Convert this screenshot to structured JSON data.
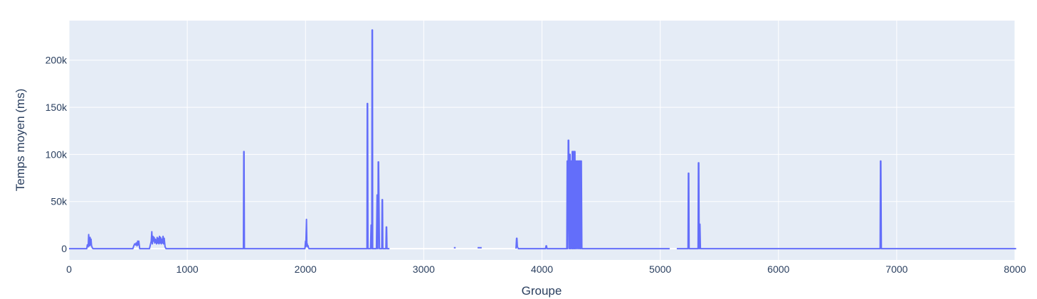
{
  "chart_data": {
    "type": "line",
    "xlabel": "Groupe",
    "ylabel": "Temps moyen (ms)",
    "xlim": [
      0,
      8000
    ],
    "ylim": [
      -12000,
      242000
    ],
    "grid": true,
    "legend": "none",
    "colors": {
      "plot_bg": "#e5ecf6",
      "grid": "#ffffff",
      "line": "#636efa",
      "text": "#2a3f5f"
    },
    "x_ticks": [
      {
        "value": 0,
        "label": "0"
      },
      {
        "value": 1000,
        "label": "1000"
      },
      {
        "value": 2000,
        "label": "2000"
      },
      {
        "value": 3000,
        "label": "3000"
      },
      {
        "value": 4000,
        "label": "4000"
      },
      {
        "value": 5000,
        "label": "5000"
      },
      {
        "value": 6000,
        "label": "6000"
      },
      {
        "value": 7000,
        "label": "7000"
      },
      {
        "value": 8000,
        "label": "8000"
      }
    ],
    "y_ticks": [
      {
        "value": 0,
        "label": "0"
      },
      {
        "value": 50000,
        "label": "50k"
      },
      {
        "value": 100000,
        "label": "100k"
      },
      {
        "value": 150000,
        "label": "150k"
      },
      {
        "value": 200000,
        "label": "200k"
      }
    ],
    "series": [
      {
        "segments": [
          {
            "x": [
              0,
              150,
              155,
              162,
              166,
              170,
              174,
              178,
              182,
              186,
              190,
              194,
              198,
              205,
              540,
              548,
              555,
              562,
              568,
              575,
              580,
              585,
              590,
              598,
              680,
              690,
              695,
              700,
              705,
              710,
              715,
              720,
              725,
              730,
              740,
              745,
              750,
              755,
              760,
              765,
              770,
              775,
              780,
              785,
              790,
              795,
              800,
              805,
              812,
              820,
              1475,
              1478,
              1480,
              1483,
              1486,
              1995,
              2000,
              2003,
              2008,
              2012,
              2015,
              2018,
              2022,
              2025,
              2030,
              2520,
              2522,
              2525,
              2528,
              2550,
              2555,
              2558,
              2561,
              2563,
              2566,
              2568,
              2572,
              2575,
              2580,
              2600,
              2605,
              2608,
              2612,
              2615,
              2618,
              2625,
              2640,
              2645,
              2648,
              2651,
              2654,
              2670,
              2680,
              2683,
              2686,
              2689,
              2692,
              2700,
              2710
            ],
            "y": [
              0,
              0,
              4000,
              2000,
              15000,
              5000,
              3000,
              12000,
              4000,
              10000,
              3000,
              2000,
              500,
              0,
              0,
              3000,
              5000,
              4000,
              6000,
              3000,
              8000,
              4000,
              8000,
              0,
              0,
              5000,
              8000,
              18000,
              5000,
              13000,
              8000,
              12000,
              6000,
              10000,
              5000,
              12000,
              6000,
              11000,
              5000,
              13000,
              6000,
              12000,
              5000,
              10000,
              6000,
              13000,
              5000,
              11000,
              2000,
              0,
              0,
              103000,
              103000,
              0,
              0,
              0,
              8000,
              2000,
              31000,
              3000,
              5000,
              2000,
              3000,
              1000,
              0,
              0,
              154000,
              154000,
              0,
              0,
              25000,
              25000,
              0,
              232000,
              232000,
              0,
              0,
              0,
              0,
              0,
              57000,
              57000,
              0,
              92000,
              92000,
              0,
              0,
              0,
              52000,
              52000,
              0,
              0,
              0,
              23000,
              23000,
              0,
              0,
              0,
              0
            ]
          },
          {
            "x": [
              3255,
              3262,
              3270
            ],
            "y": [
              1000,
              1000,
              1000
            ]
          },
          {
            "x": [
              3455,
              3470,
              3490
            ],
            "y": [
              1000,
              1000,
              1000
            ]
          },
          {
            "x": [
              3780,
              3785,
              3788,
              3792,
              3796,
              3800,
              4030,
              4035,
              4038,
              4042,
              4050,
              4210,
              4213,
              4215,
              4218,
              4222,
              4226,
              4232,
              4235,
              4238,
              4241,
              4246,
              4249,
              4252,
              4256,
              4259,
              4262,
              4266,
              4269,
              4272,
              4276,
              4279,
              4282,
              4286,
              4290,
              4294,
              4298,
              4302,
              4306,
              4310,
              4314,
              4318,
              4320,
              4323,
              4326,
              4329,
              4333,
              4337,
              5080
            ],
            "y": [
              0,
              11000,
              11000,
              2000,
              1000,
              0,
              0,
              3000,
              3000,
              0,
              0,
              0,
              93000,
              93000,
              0,
              115000,
              115000,
              0,
              100000,
              100000,
              0,
              93000,
              93000,
              0,
              103000,
              103000,
              0,
              103000,
              103000,
              0,
              103000,
              103000,
              0,
              93000,
              93000,
              0,
              93000,
              93000,
              0,
              93000,
              93000,
              0,
              93000,
              93000,
              0,
              93000,
              93000,
              0,
              0
            ]
          },
          {
            "x": [
              5140,
              5235,
              5238,
              5241,
              5244,
              5320,
              5323,
              5326,
              5330,
              5333,
              5336,
              5340,
              6860,
              6863,
              6866,
              6870,
              8010
            ],
            "y": [
              0,
              0,
              80000,
              80000,
              0,
              0,
              91000,
              91000,
              0,
              26000,
              26000,
              0,
              0,
              93000,
              93000,
              0,
              0
            ]
          }
        ]
      }
    ]
  }
}
